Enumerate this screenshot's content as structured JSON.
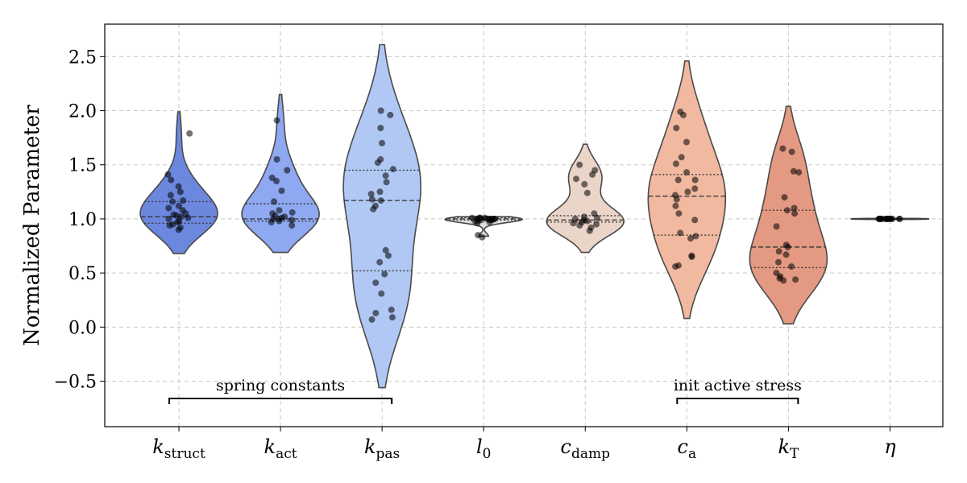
{
  "chart_data": {
    "type": "violin",
    "title": "",
    "xlabel": "",
    "ylabel": "Normalized Parameter",
    "ylim": [
      -0.92,
      2.8
    ],
    "yticks": [
      -0.5,
      0.0,
      0.5,
      1.0,
      1.5,
      2.0,
      2.5
    ],
    "ytick_labels": [
      "−0.5",
      "0.0",
      "0.5",
      "1.0",
      "1.5",
      "2.0",
      "2.5"
    ],
    "grid": true,
    "categories": [
      {
        "id": "k_struct",
        "base": "k",
        "sub": "struct",
        "sub_italic": false,
        "color": "#6c87de",
        "range": [
          0.68,
          1.99
        ],
        "q1": 0.96,
        "median": 1.02,
        "q3": 1.16,
        "points": [
          0.9,
          0.92,
          0.94,
          0.95,
          0.97,
          0.98,
          1.0,
          1.01,
          1.02,
          1.03,
          1.04,
          1.05,
          1.08,
          1.1,
          1.12,
          1.16,
          1.17,
          1.22,
          1.25,
          1.3,
          1.36,
          1.41,
          1.79
        ]
      },
      {
        "id": "k_act",
        "base": "k",
        "sub": "act",
        "sub_italic": false,
        "color": "#8ea8f1",
        "range": [
          0.69,
          2.15
        ],
        "q1": 0.98,
        "median": 1.0,
        "q3": 1.14,
        "points": [
          0.94,
          0.97,
          0.98,
          0.99,
          1.0,
          1.0,
          1.01,
          1.02,
          1.03,
          1.05,
          1.06,
          1.08,
          1.16,
          1.26,
          1.35,
          1.38,
          1.45,
          1.55,
          1.91
        ]
      },
      {
        "id": "k_pas",
        "base": "k",
        "sub": "pas",
        "sub_italic": false,
        "color": "#b1c8f5",
        "range": [
          -0.56,
          2.61
        ],
        "q1": 0.52,
        "median": 1.17,
        "q3": 1.45,
        "points": [
          0.07,
          0.09,
          0.13,
          0.16,
          0.31,
          0.41,
          0.49,
          0.6,
          0.66,
          0.71,
          1.09,
          1.12,
          1.17,
          1.18,
          1.23,
          1.25,
          1.34,
          1.4,
          1.46,
          1.52,
          1.55,
          1.7,
          1.84,
          1.96,
          2.0
        ]
      },
      {
        "id": "l_0",
        "base": "l",
        "sub": "0",
        "sub_italic": false,
        "color": "#dddcdc",
        "range": [
          0.84,
          1.02
        ],
        "q1": 0.99,
        "median": 1.0,
        "q3": 1.01,
        "points": [
          0.83,
          0.85,
          0.96,
          0.97,
          0.98,
          0.98,
          0.99,
          0.99,
          1.0,
          1.0,
          1.0,
          1.0,
          1.0,
          1.01,
          1.01,
          1.01,
          1.01,
          1.0,
          0.99
        ]
      },
      {
        "id": "c_damp",
        "base": "c",
        "sub": "damp",
        "sub_italic": false,
        "color": "#ebd5c9",
        "range": [
          0.69,
          1.69
        ],
        "q1": 0.97,
        "median": 0.99,
        "q3": 1.03,
        "points": [
          0.89,
          0.92,
          0.94,
          0.95,
          0.96,
          0.97,
          0.98,
          0.99,
          1.0,
          1.01,
          1.02,
          1.05,
          1.24,
          1.32,
          1.37,
          1.41,
          1.45,
          1.5
        ]
      },
      {
        "id": "c_a",
        "base": "c",
        "sub": "a",
        "sub_italic": true,
        "color": "#f1b9a0",
        "range": [
          0.08,
          2.46
        ],
        "q1": 0.85,
        "median": 1.21,
        "q3": 1.41,
        "points": [
          0.56,
          0.57,
          0.65,
          0.66,
          0.82,
          0.84,
          0.87,
          0.99,
          1.05,
          1.12,
          1.18,
          1.22,
          1.25,
          1.28,
          1.36,
          1.36,
          1.43,
          1.51,
          1.57,
          1.71,
          1.84,
          1.96,
          1.99
        ]
      },
      {
        "id": "k_T",
        "base": "k",
        "sub": "T",
        "sub_italic": true,
        "color": "#e49a82",
        "range": [
          0.03,
          2.04
        ],
        "q1": 0.55,
        "median": 0.74,
        "q3": 1.08,
        "points": [
          0.43,
          0.44,
          0.45,
          0.47,
          0.5,
          0.56,
          0.6,
          0.67,
          0.7,
          0.74,
          0.76,
          0.93,
          1.05,
          1.08,
          1.1,
          1.2,
          1.43,
          1.44,
          1.62,
          1.65
        ]
      },
      {
        "id": "eta",
        "base": "η",
        "sub": "",
        "sub_italic": false,
        "color": "#d76c56",
        "range": [
          0.995,
          1.005
        ],
        "q1": 1.0,
        "median": 1.0,
        "q3": 1.0,
        "points": [
          1.0,
          1.0,
          1.0,
          1.0,
          1.0,
          1.0,
          1.0,
          1.0,
          1.0,
          1.0,
          1.0,
          1.0,
          1.0,
          1.0,
          1.0,
          1.0
        ]
      }
    ],
    "annotations": [
      {
        "label": "spring constants",
        "from": "k_struct",
        "to": "k_pas"
      },
      {
        "label": "init active stress",
        "from": "c_a",
        "to": "k_T"
      }
    ]
  }
}
